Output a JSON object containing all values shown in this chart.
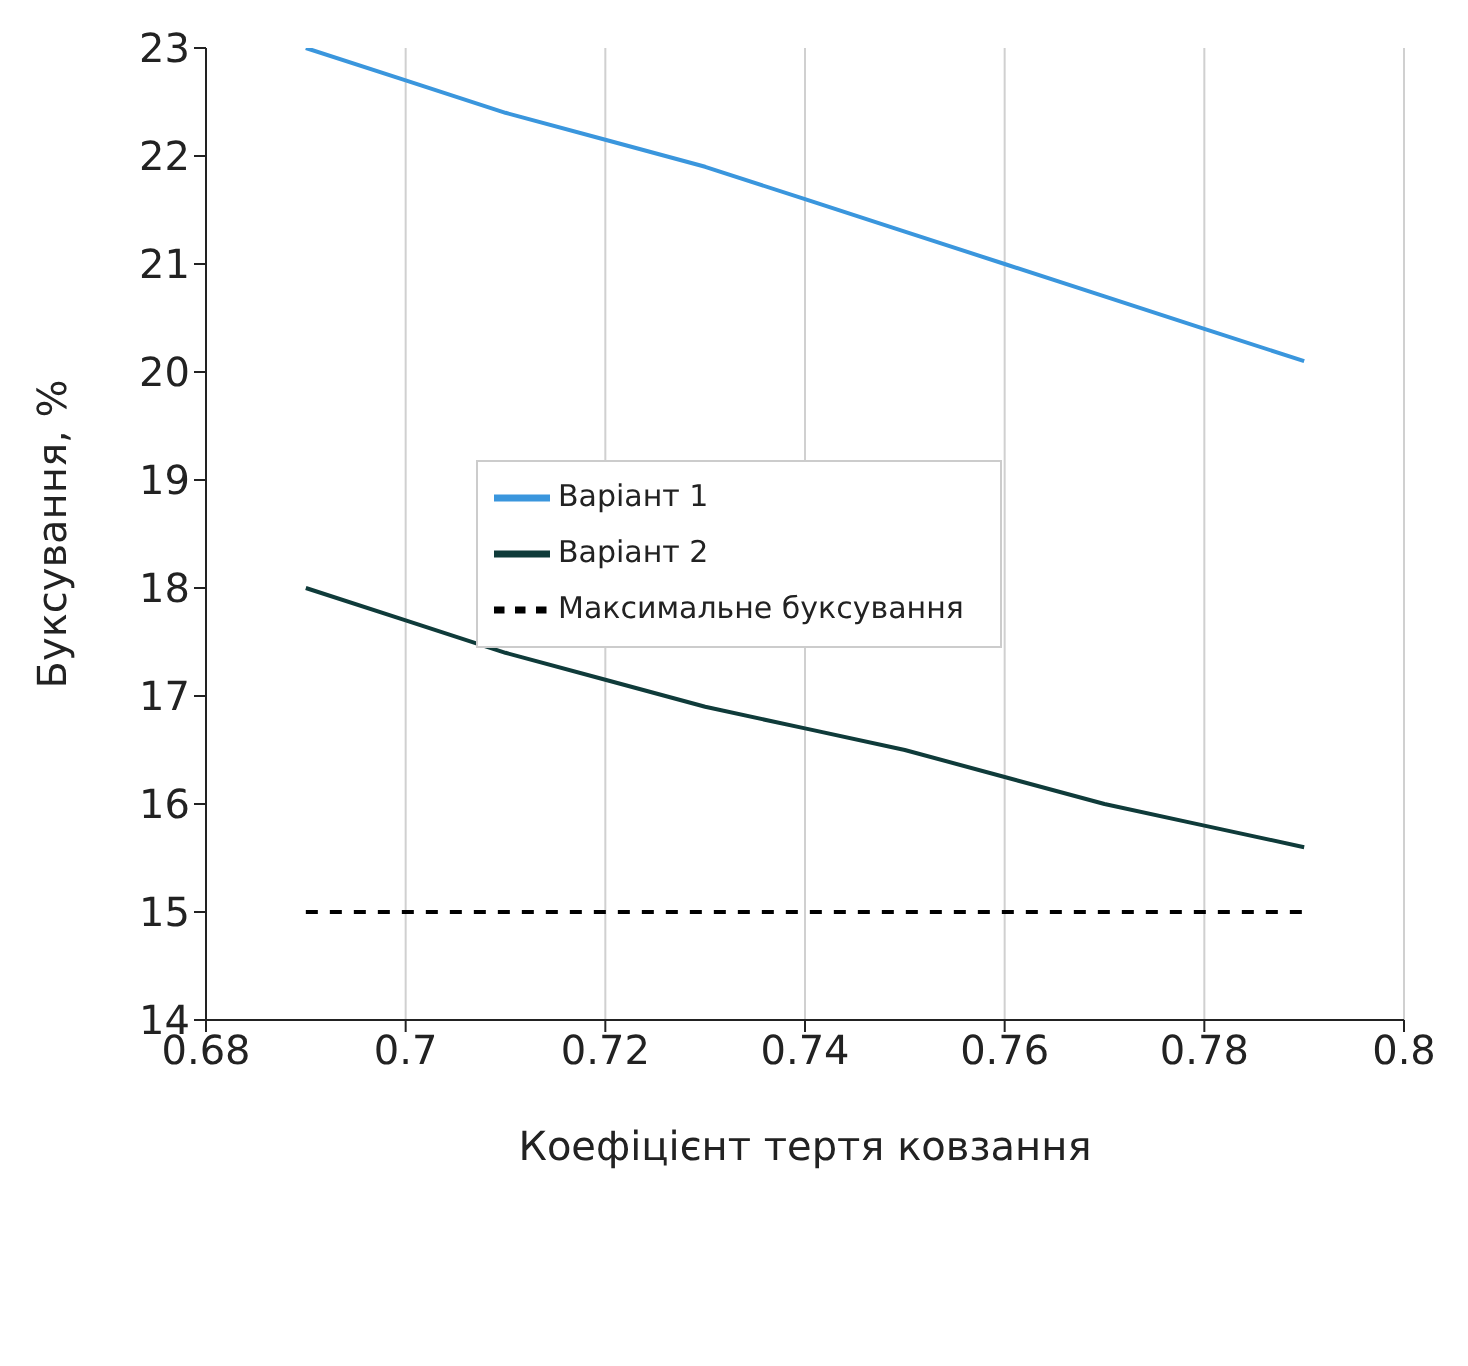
{
  "chart_data": {
    "type": "line",
    "xlabel": "Коефіцієнт тертя ковзання",
    "ylabel": "Буксування, %",
    "x": [
      0.69,
      0.7,
      0.71,
      0.72,
      0.73,
      0.74,
      0.75,
      0.76,
      0.77,
      0.78,
      0.79
    ],
    "series": [
      {
        "name": "Варіант 1",
        "color": "#3a96dd",
        "values": [
          23.0,
          22.7,
          22.4,
          22.15,
          21.9,
          21.6,
          21.3,
          21.0,
          20.7,
          20.4,
          20.1
        ]
      },
      {
        "name": "Варіант 2",
        "color": "#0f3b3a",
        "values": [
          18.0,
          17.7,
          17.4,
          17.15,
          16.9,
          16.7,
          16.5,
          16.25,
          16.0,
          15.8,
          15.6
        ]
      },
      {
        "name": "Максимальне буксування",
        "color": "#000000",
        "line_style": "dashed",
        "values": [
          15,
          15,
          15,
          15,
          15,
          15,
          15,
          15,
          15,
          15,
          15
        ]
      }
    ],
    "xlim": [
      0.68,
      0.8
    ],
    "xticks": [
      0.68,
      0.7,
      0.72,
      0.74,
      0.76,
      0.78,
      0.8
    ],
    "ylim": [
      14,
      23
    ],
    "yticks": [
      14,
      15,
      16,
      17,
      18,
      19,
      20,
      21,
      22,
      23
    ],
    "grid": "x",
    "legend": "left",
    "marker": "none"
  }
}
